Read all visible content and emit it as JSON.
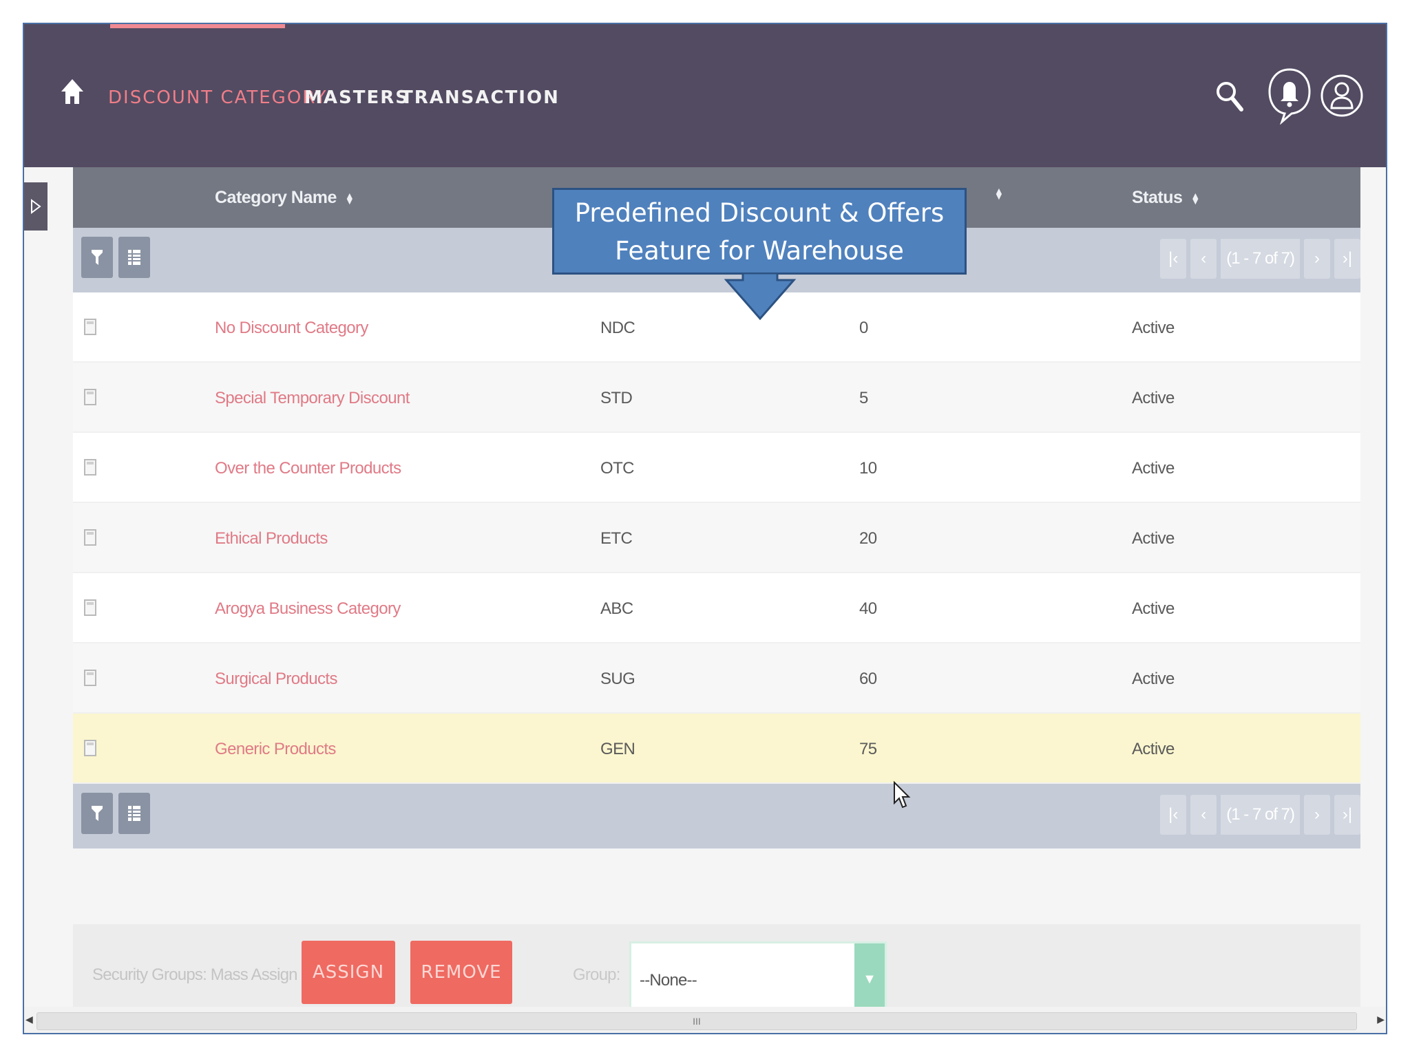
{
  "nav": {
    "items": [
      {
        "label": "DISCOUNT CATEGORY",
        "active": true
      },
      {
        "label": "MASTERS"
      },
      {
        "label": "TRANSACTION"
      }
    ],
    "icons": [
      "home-icon",
      "search-icon",
      "bell-icon",
      "user-icon"
    ],
    "accent_color": "#f07e88",
    "bar_color": "#534b62"
  },
  "table": {
    "headers": {
      "name": "Category Name",
      "status": "Status"
    },
    "pager": {
      "info": "(1 - 7 of 7)",
      "first": "|‹",
      "prev": "‹",
      "next": "›",
      "last": "›|"
    },
    "rows": [
      {
        "name": "No Discount Category",
        "code": "NDC",
        "discount": "0",
        "status": "Active"
      },
      {
        "name": "Special Temporary Discount",
        "code": "STD",
        "discount": "5",
        "status": "Active"
      },
      {
        "name": "Over the Counter Products",
        "code": "OTC",
        "discount": "10",
        "status": "Active"
      },
      {
        "name": "Ethical Products",
        "code": "ETC",
        "discount": "20",
        "status": "Active"
      },
      {
        "name": "Arogya Business Category",
        "code": "ABC",
        "discount": "40",
        "status": "Active"
      },
      {
        "name": "Surgical Products",
        "code": "SUG",
        "discount": "60",
        "status": "Active"
      },
      {
        "name": "Generic Products",
        "code": "GEN",
        "discount": "75",
        "status": "Active",
        "highlighted": true
      }
    ]
  },
  "callout": {
    "line1": "Predefined Discount & Offers",
    "line2": "Feature for Warehouse",
    "color": "#4f81bd"
  },
  "mass_assign": {
    "label": "Security Groups: Mass Assign",
    "assign_label": "ASSIGN",
    "remove_label": "REMOVE",
    "group_label": "Group:",
    "group_value": "--None--",
    "button_color": "#ef6a61"
  },
  "scrollbar": {
    "grip": "III"
  }
}
